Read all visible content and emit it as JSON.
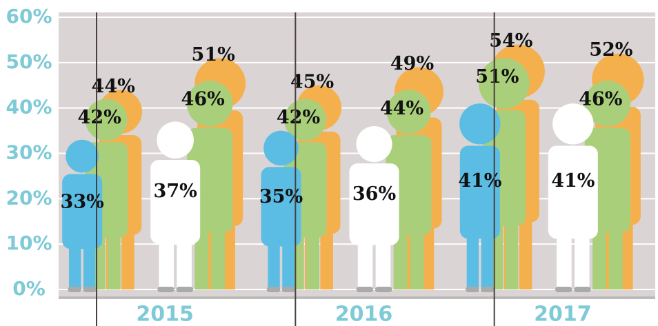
{
  "chart_data": {
    "type": "pictogram",
    "categories": [
      "2015",
      "2016",
      "2017"
    ],
    "series": [
      {
        "color": "#f5b04e",
        "values": [
          44,
          45,
          54
        ],
        "value_labels": [
          "44%",
          "45%",
          "54%"
        ]
      },
      {
        "color": "#a9cf7b",
        "values": [
          42,
          42,
          51
        ],
        "value_labels": [
          "42%",
          "42%",
          "51%"
        ]
      },
      {
        "color": "#5bbde4",
        "values": [
          33,
          35,
          41
        ],
        "value_labels": [
          "33%",
          "35%",
          "41%"
        ]
      },
      {
        "color": "#f5b04e",
        "values": [
          51,
          49,
          52
        ],
        "value_labels": [
          "51%",
          "49%",
          "52%"
        ]
      },
      {
        "color": "#a9cf7b",
        "values": [
          46,
          44,
          46
        ],
        "value_labels": [
          "46%",
          "44%",
          "46%"
        ]
      },
      {
        "color": "#ffffff",
        "values": [
          37,
          36,
          41
        ],
        "value_labels": [
          "37%",
          "36%",
          "41%"
        ]
      }
    ],
    "ylim": [
      0,
      60
    ],
    "yticks": [
      {
        "value": 0,
        "label": "0%"
      },
      {
        "value": 10,
        "label": "10%"
      },
      {
        "value": 20,
        "label": "20%"
      },
      {
        "value": 30,
        "label": "30%"
      },
      {
        "value": 40,
        "label": "40%"
      },
      {
        "value": 50,
        "label": "50%"
      },
      {
        "value": 60,
        "label": "60%"
      }
    ],
    "grid": true
  }
}
